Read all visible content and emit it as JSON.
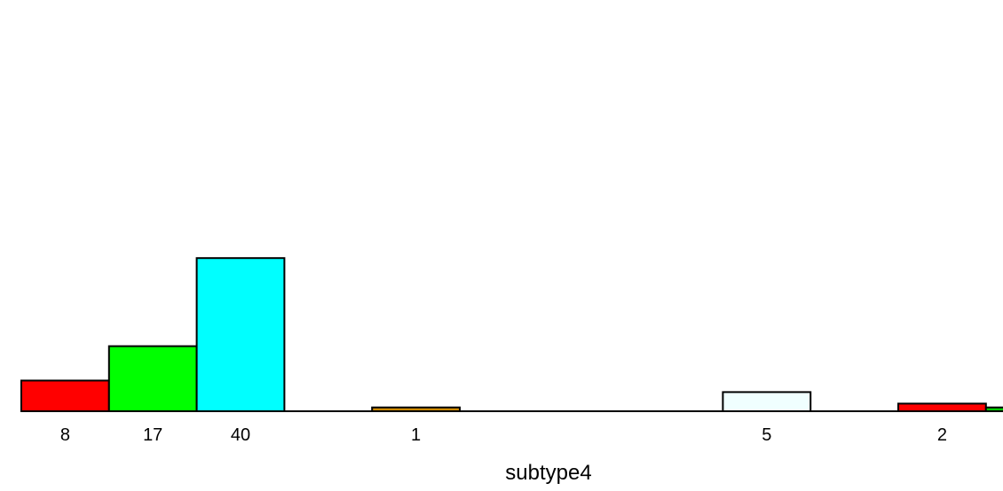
{
  "chart_data": {
    "type": "bar",
    "title": "",
    "xlabel": "subtype4",
    "ylabel": "",
    "categories": [
      "8",
      "17",
      "40",
      "",
      "1",
      "",
      "",
      "",
      "5",
      "",
      "2",
      ""
    ],
    "values": [
      8,
      17,
      40,
      0,
      1,
      0,
      0,
      0,
      5,
      0,
      2,
      1
    ],
    "colors": [
      "#ff0000",
      "#00ff00",
      "#00ffff",
      "#ffffff",
      "#cc8800",
      "#ffffff",
      "#ffffff",
      "#ffffff",
      "#f0ffff",
      "#ffffff",
      "#ff0000",
      "#00cc00"
    ],
    "ylim": [
      0,
      100
    ],
    "grid": false,
    "legend": "none"
  }
}
